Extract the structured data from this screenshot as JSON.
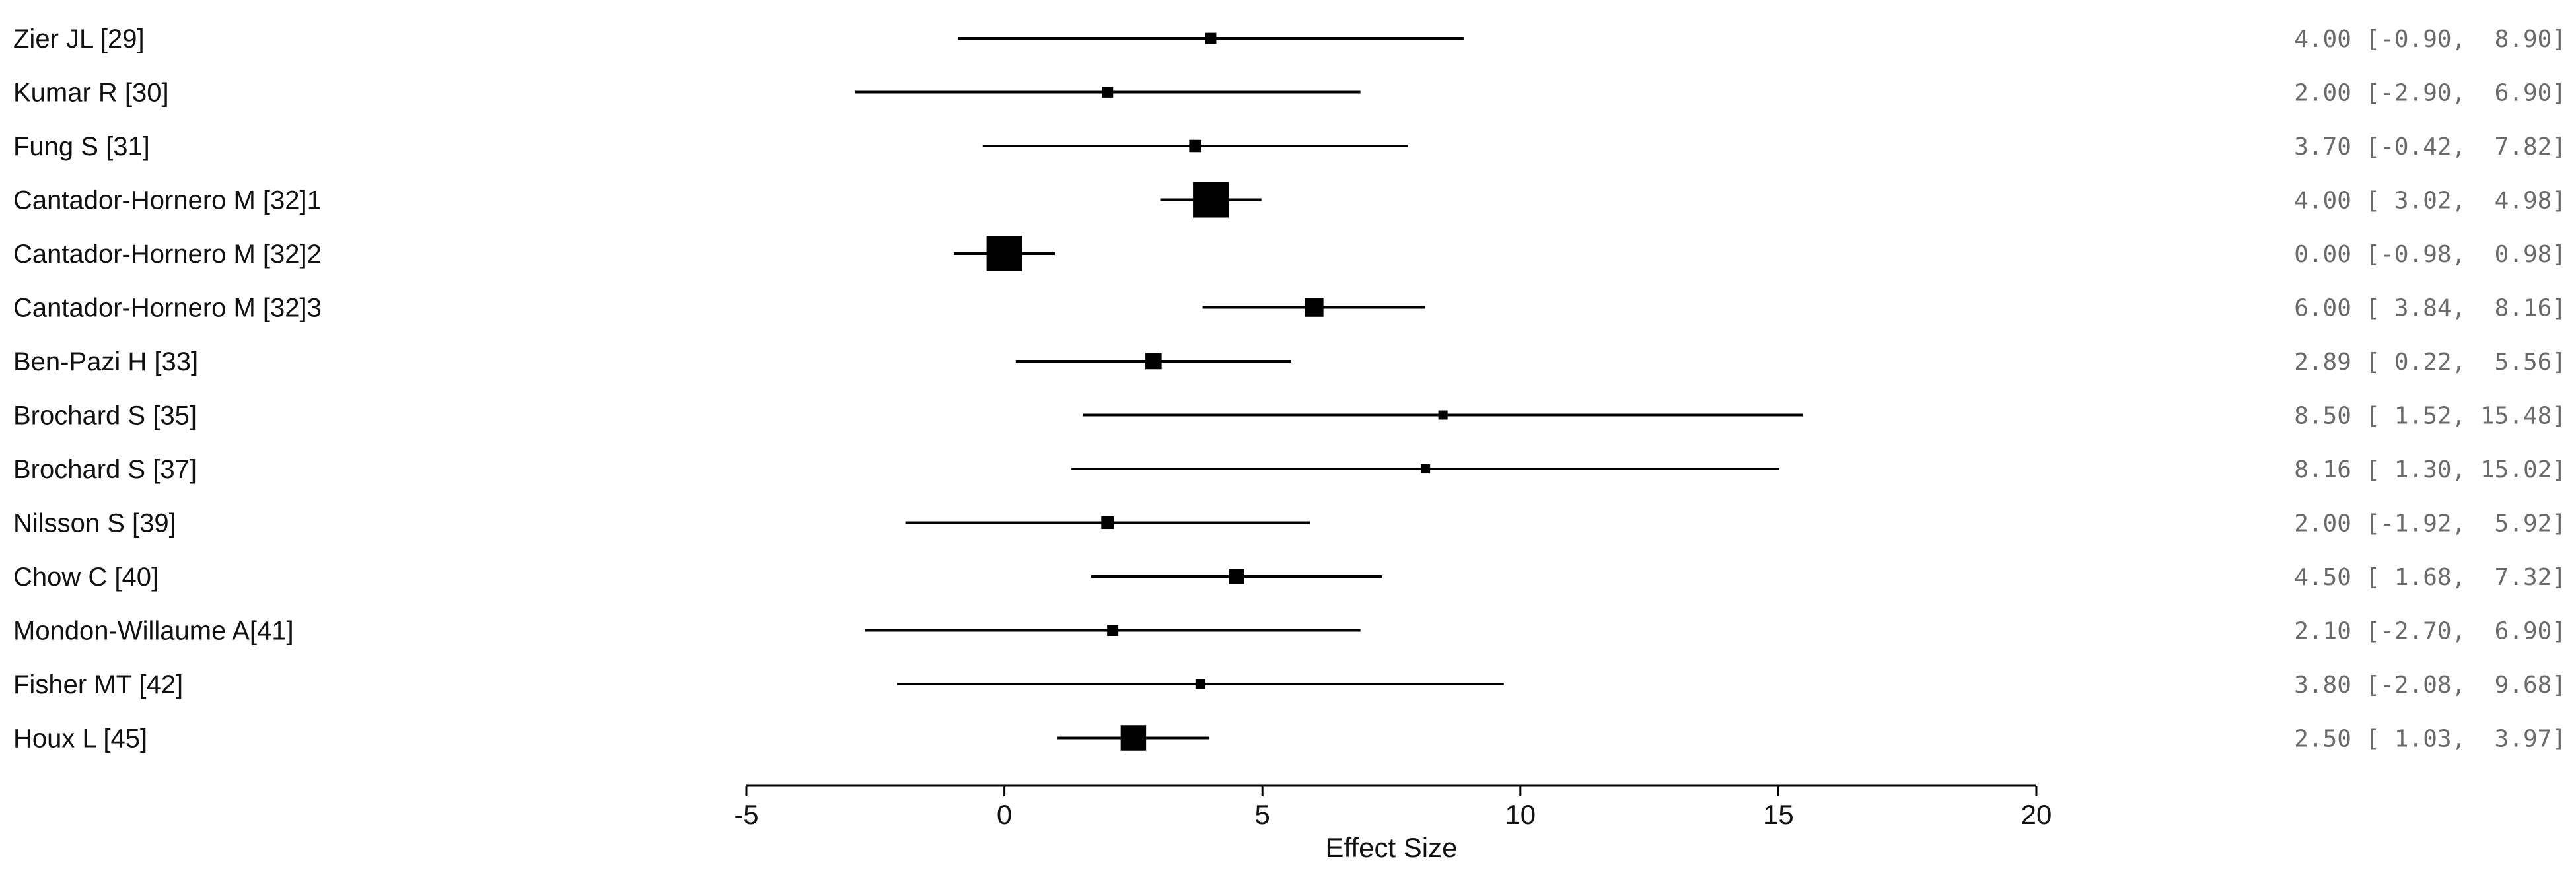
{
  "chart_data": {
    "type": "forest",
    "xlabel": "Effect Size",
    "xlim": [
      -5,
      20
    ],
    "xticks": [
      -5,
      0,
      5,
      10,
      15,
      20
    ],
    "studies": [
      {
        "label": "Zier JL [29]",
        "estimate": 4.0,
        "lower": -0.9,
        "upper": 8.9,
        "text": "4.00 [-0.90,  8.90]"
      },
      {
        "label": "Kumar R [30]",
        "estimate": 2.0,
        "lower": -2.9,
        "upper": 6.9,
        "text": "2.00 [-2.90,  6.90]"
      },
      {
        "label": "Fung S [31]",
        "estimate": 3.7,
        "lower": -0.42,
        "upper": 7.82,
        "text": "3.70 [-0.42,  7.82]"
      },
      {
        "label": "Cantador-Hornero M [32]1",
        "estimate": 4.0,
        "lower": 3.02,
        "upper": 4.98,
        "text": "4.00 [ 3.02,  4.98]"
      },
      {
        "label": "Cantador-Hornero M [32]2",
        "estimate": 0.0,
        "lower": -0.98,
        "upper": 0.98,
        "text": "0.00 [-0.98,  0.98]"
      },
      {
        "label": "Cantador-Hornero M [32]3",
        "estimate": 6.0,
        "lower": 3.84,
        "upper": 8.16,
        "text": "6.00 [ 3.84,  8.16]"
      },
      {
        "label": "Ben-Pazi H [33]",
        "estimate": 2.89,
        "lower": 0.22,
        "upper": 5.56,
        "text": "2.89 [ 0.22,  5.56]"
      },
      {
        "label": "Brochard S [35]",
        "estimate": 8.5,
        "lower": 1.52,
        "upper": 15.48,
        "text": "8.50 [ 1.52, 15.48]"
      },
      {
        "label": "Brochard S [37]",
        "estimate": 8.16,
        "lower": 1.3,
        "upper": 15.02,
        "text": "8.16 [ 1.30, 15.02]"
      },
      {
        "label": "Nilsson S [39]",
        "estimate": 2.0,
        "lower": -1.92,
        "upper": 5.92,
        "text": "2.00 [-1.92,  5.92]"
      },
      {
        "label": "Chow C [40]",
        "estimate": 4.5,
        "lower": 1.68,
        "upper": 7.32,
        "text": "4.50 [ 1.68,  7.32]"
      },
      {
        "label": "Mondon-Willaume A[41]",
        "estimate": 2.1,
        "lower": -2.7,
        "upper": 6.9,
        "text": "2.10 [-2.70,  6.90]"
      },
      {
        "label": "Fisher MT [42]",
        "estimate": 3.8,
        "lower": -2.08,
        "upper": 9.68,
        "text": "3.80 [-2.08,  9.68]"
      },
      {
        "label": "Houx L [45]",
        "estimate": 2.5,
        "lower": 1.03,
        "upper": 3.97,
        "text": "2.50 [ 1.03,  3.97]"
      }
    ],
    "series_color": "#000000",
    "annotation_color": "#6a6a6a"
  }
}
